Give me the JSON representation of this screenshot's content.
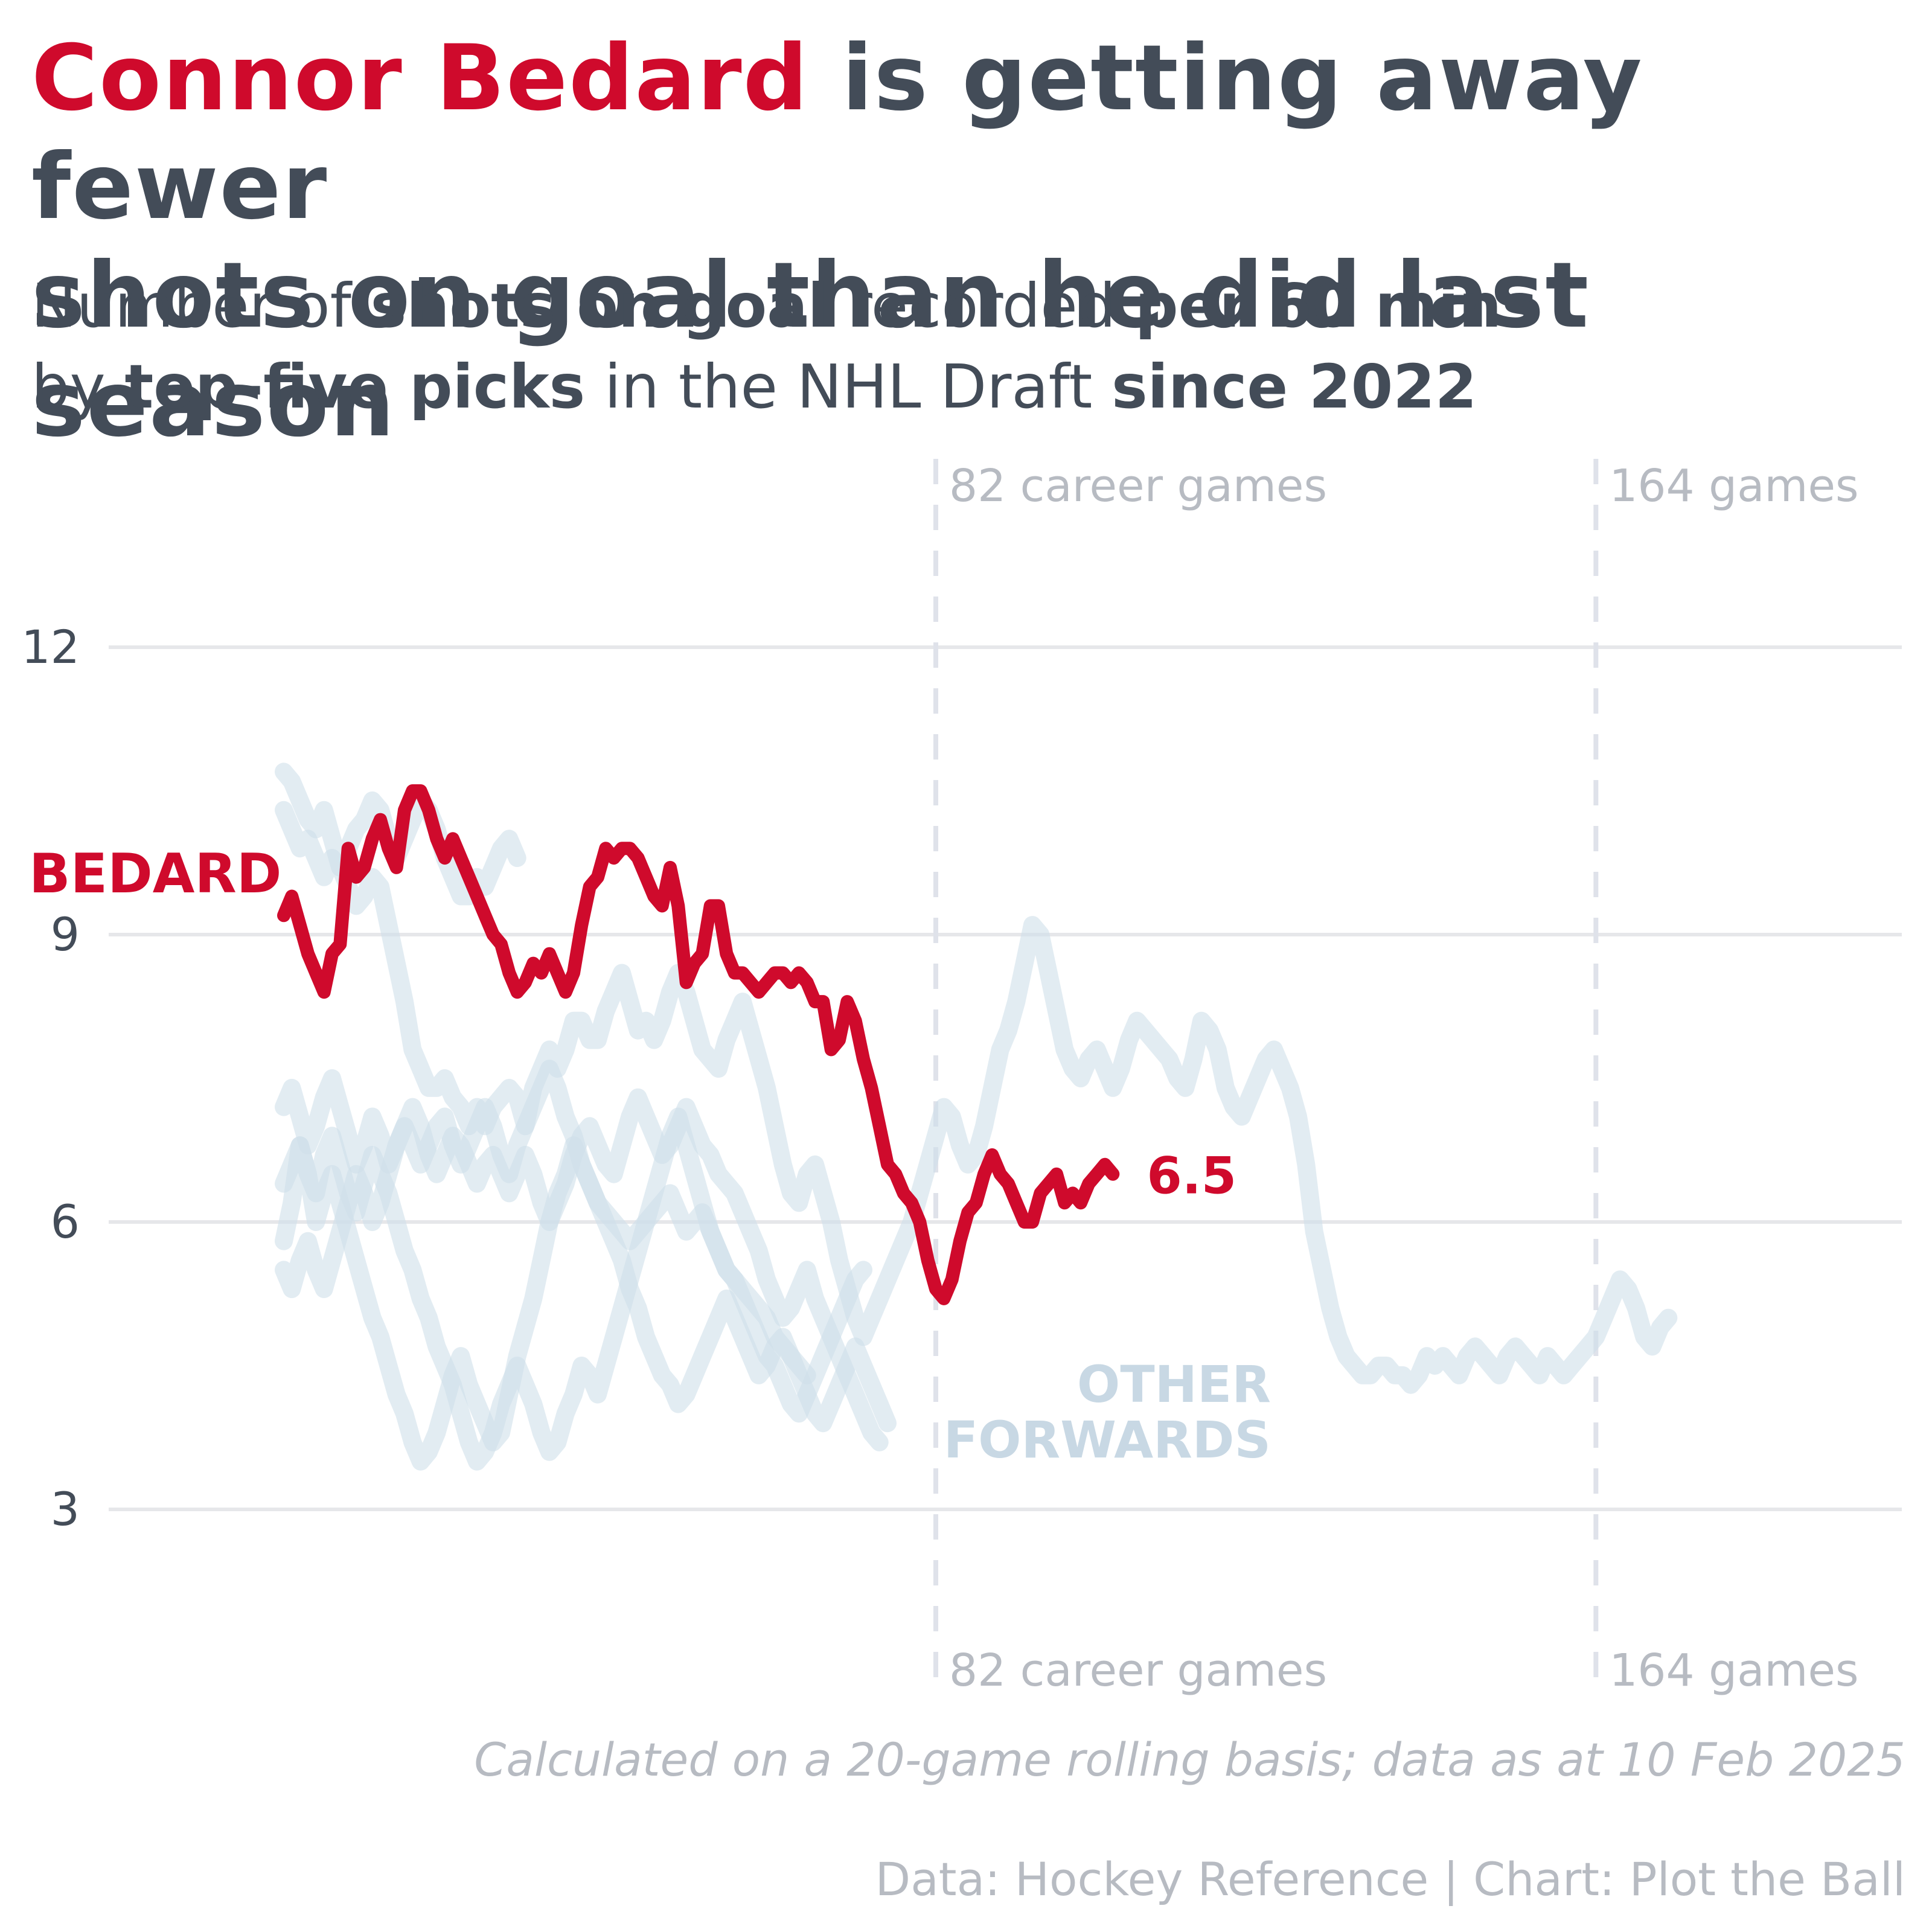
{
  "title": {
    "highlight": "Connor Bedard",
    "line1_rest": " is getting away fewer",
    "line2": "shots on goal than he did last season"
  },
  "subtitle": {
    "p1": "Number of ",
    "b1": "shots on goal",
    "p2": " recorded ",
    "b2": "per 60 mins",
    "p3": "by ",
    "b3": "top-five picks",
    "p4": " in the NHL Draft ",
    "b4": "since 2022"
  },
  "chart_data": {
    "type": "line",
    "x_field": "career game",
    "ylim": [
      3,
      12
    ],
    "y_ticks": [
      3,
      6,
      9,
      12
    ],
    "xlim": [
      1,
      172
    ],
    "grid": "horizontal",
    "reference_lines": [
      {
        "x": 82,
        "label_top": "82 career games",
        "label_bottom": "82 career games"
      },
      {
        "x": 164,
        "label_top": "164 games",
        "label_bottom": "164 games"
      }
    ],
    "highlight": {
      "name": "BEDARD",
      "color": "#cf0a2c",
      "last_value_label": "6.5",
      "values": [
        9.2,
        9.4,
        9.1,
        8.8,
        8.6,
        8.4,
        8.8,
        8.9,
        9.9,
        9.6,
        9.7,
        10.0,
        10.2,
        9.9,
        9.7,
        10.3,
        10.5,
        10.5,
        10.3,
        10.0,
        9.8,
        10.0,
        9.8,
        9.6,
        9.4,
        9.2,
        9.0,
        8.9,
        8.6,
        8.4,
        8.5,
        8.7,
        8.6,
        8.8,
        8.6,
        8.4,
        8.6,
        9.1,
        9.5,
        9.6,
        9.9,
        9.8,
        9.9,
        9.9,
        9.8,
        9.6,
        9.4,
        9.3,
        9.7,
        9.3,
        8.5,
        8.7,
        8.8,
        9.3,
        9.3,
        8.8,
        8.6,
        8.6,
        8.5,
        8.4,
        8.5,
        8.6,
        8.6,
        8.5,
        8.6,
        8.5,
        8.3,
        8.3,
        7.8,
        7.9,
        8.3,
        8.1,
        7.7,
        7.4,
        7.0,
        6.6,
        6.5,
        6.3,
        6.2,
        6.0,
        5.6,
        5.3,
        5.2,
        5.4,
        5.8,
        6.1,
        6.2,
        6.5,
        6.7,
        6.5,
        6.4,
        6.2,
        6.0,
        6.0,
        6.3,
        6.4,
        6.5,
        6.2,
        6.3,
        6.2,
        6.4,
        6.5,
        6.6,
        6.5
      ]
    },
    "others": {
      "label": "OTHER FORWARDS",
      "color": "#cfdfe9",
      "series": [
        {
          "values": [
            10.7,
            10.6,
            10.4,
            10.2,
            10.1,
            10.3,
            10.0,
            9.7,
            9.9,
            10.1,
            10.2,
            10.4,
            10.3,
            10.0,
            9.8,
            10.0,
            10.2,
            10.4,
            10.3,
            10.1,
            9.8,
            9.6,
            9.4,
            9.4,
            9.6,
            9.5,
            9.7,
            9.9,
            10.0,
            9.8
          ]
        },
        {
          "values": [
            10.3,
            10.1,
            9.9,
            10.0,
            9.8,
            9.6,
            9.8,
            9.7,
            9.5,
            9.3,
            9.4,
            9.6,
            9.5,
            9.1,
            8.7,
            8.3,
            7.8,
            7.6,
            7.4,
            7.4,
            7.5,
            7.3,
            7.2,
            7.0,
            7.2,
            7.0,
            7.2,
            7.3,
            7.4,
            7.3,
            7.0,
            7.4,
            7.6,
            7.8,
            7.6,
            7.8,
            8.1,
            8.1,
            7.9,
            7.9,
            8.2,
            8.4,
            8.6,
            8.3,
            8.0,
            8.1,
            7.9,
            8.1,
            8.4,
            8.6,
            8.4,
            8.1,
            7.8,
            7.7,
            7.6,
            7.9,
            8.1,
            8.3,
            8.0,
            7.7,
            7.4,
            7.0,
            6.6,
            6.3,
            6.2,
            6.5,
            6.6,
            6.3,
            6.0,
            5.6,
            5.3,
            5.0,
            4.8,
            5.0,
            5.2,
            5.4,
            5.6,
            5.8,
            6.0,
            6.3,
            6.6,
            6.9,
            7.2,
            7.1,
            6.8,
            6.6,
            6.7,
            7.0,
            7.4,
            7.8,
            8.0,
            8.3,
            8.7,
            9.1,
            9.0,
            8.6,
            8.2,
            7.8,
            7.6,
            7.5,
            7.7,
            7.8,
            7.6,
            7.4,
            7.6,
            7.9,
            8.1,
            8.0,
            7.9,
            7.8,
            7.7,
            7.5,
            7.4,
            7.7,
            8.1,
            8.0,
            7.8,
            7.4,
            7.2,
            7.1,
            7.3,
            7.5,
            7.7,
            7.8,
            7.6,
            7.4,
            7.1,
            6.6,
            5.9,
            5.5,
            5.1,
            4.8,
            4.6,
            4.5,
            4.4,
            4.4,
            4.5,
            4.5,
            4.4,
            4.4,
            4.3,
            4.4,
            4.6,
            4.5,
            4.6,
            4.5,
            4.4,
            4.6,
            4.7,
            4.6,
            4.5,
            4.4,
            4.6,
            4.7,
            4.6,
            4.5,
            4.4,
            4.6,
            4.5,
            4.4,
            4.5,
            4.6,
            4.7,
            4.8,
            5.0,
            5.2,
            5.4,
            5.3,
            5.1,
            4.8,
            4.7,
            4.9,
            5.0
          ]
        },
        {
          "values": [
            7.2,
            7.4,
            7.1,
            6.8,
            7.0,
            7.3,
            7.5,
            7.2,
            6.9,
            6.6,
            6.8,
            7.1,
            6.9,
            6.6,
            6.8,
            7.0,
            7.2,
            7.0,
            6.7,
            6.5,
            6.7,
            6.9,
            6.8,
            6.6,
            6.4,
            6.6,
            6.7,
            6.5,
            6.3,
            6.5,
            6.7,
            6.5,
            6.2,
            6.0,
            6.2,
            6.4,
            6.7,
            6.9,
            7.0,
            6.8,
            6.6,
            6.5,
            6.8,
            7.1,
            7.3,
            7.1,
            6.9,
            6.7,
            6.8,
            7.0,
            7.2,
            7.0,
            6.8,
            6.7,
            6.5,
            6.4,
            6.3,
            6.1,
            5.9,
            5.7,
            5.4,
            5.2,
            5.0,
            5.1,
            5.3,
            5.5,
            5.2,
            5.0,
            4.8,
            4.6,
            4.4,
            4.2,
            4.0,
            3.8,
            3.7
          ]
        },
        {
          "values": [
            6.4,
            6.6,
            6.8,
            6.5,
            6.3,
            6.7,
            6.9,
            6.6,
            6.3,
            6.1,
            6.4,
            6.7,
            6.5,
            6.3,
            6.0,
            5.7,
            5.5,
            5.2,
            5.0,
            4.7,
            4.5,
            4.3,
            4.0,
            3.7,
            3.5,
            3.6,
            3.8,
            4.1,
            4.3,
            4.5,
            4.3,
            4.1,
            3.8,
            3.6,
            3.7,
            4.0,
            4.2,
            4.5,
            4.4,
            4.2,
            4.5,
            4.8,
            5.1,
            5.4,
            5.7,
            6.0,
            6.3,
            6.6,
            6.9,
            7.1,
            6.8,
            6.5,
            6.2,
            5.9,
            5.7,
            5.5,
            5.4,
            5.2,
            5.0,
            4.8,
            4.6,
            4.5,
            4.3,
            4.1,
            4.0,
            4.2,
            4.4,
            4.6,
            4.8,
            5.0,
            5.2,
            5.4,
            5.5
          ]
        },
        {
          "values": [
            5.8,
            6.2,
            6.8,
            6.5,
            6.0,
            6.3,
            6.5,
            6.2,
            5.9,
            5.6,
            5.3,
            5.0,
            4.8,
            4.5,
            4.2,
            4.0,
            3.7,
            3.5,
            3.6,
            3.8,
            4.1,
            4.4,
            4.6,
            4.3,
            4.1,
            3.9,
            3.7,
            3.8,
            4.2,
            4.6,
            4.9,
            5.2,
            5.6,
            6.0,
            6.3,
            6.5,
            6.8,
            6.6,
            6.4,
            6.2,
            6.0,
            5.8,
            5.6,
            5.3,
            5.1,
            4.8,
            4.6,
            4.4,
            4.3,
            4.1,
            4.2,
            4.4,
            4.6,
            4.8,
            5.0,
            5.2,
            5.0,
            4.8,
            4.6,
            4.4,
            4.5,
            4.7,
            4.8,
            4.6,
            4.4,
            4.2,
            4.0,
            3.9,
            4.1,
            4.3,
            4.5,
            4.7,
            4.5,
            4.3,
            4.1,
            3.9
          ]
        },
        {
          "values": [
            5.5,
            5.3,
            5.6,
            5.8,
            5.5,
            5.3,
            5.6,
            5.9,
            6.2,
            6.5,
            6.3,
            6.0,
            6.2,
            6.5,
            6.8,
            7.0,
            6.8,
            6.6,
            6.8,
            7.0,
            7.1,
            6.8,
            6.6,
            6.8,
            7.0,
            7.2,
            7.0,
            6.7,
            6.5,
            6.8,
            7.0,
            7.2,
            7.4,
            7.6,
            7.4,
            7.1,
            6.9,
            6.6,
            6.4,
            6.2,
            6.1,
            6.0,
            5.9,
            5.8,
            5.9,
            6.0,
            6.1,
            6.2,
            6.3,
            6.1,
            5.9,
            6.0,
            6.1,
            5.9,
            5.7,
            5.5,
            5.4,
            5.3,
            5.2,
            5.1,
            5.0,
            4.8,
            4.7,
            4.6,
            4.5,
            4.4
          ]
        }
      ]
    }
  },
  "footnote": "Calculated on a 20-game rolling basis; data as at 10 Feb 2025",
  "credit": "Data: Hockey Reference | Chart: Plot the Ball"
}
